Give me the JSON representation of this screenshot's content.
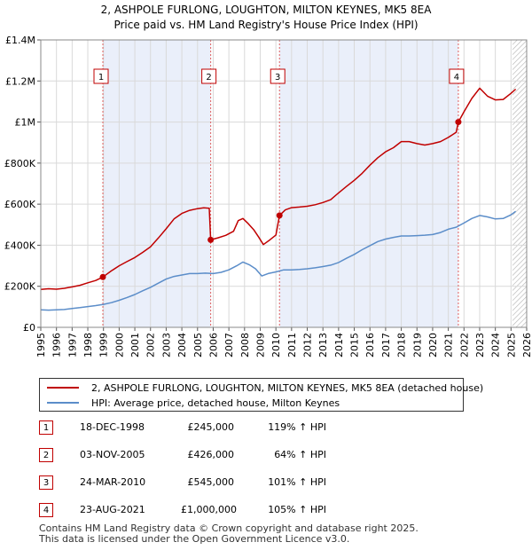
{
  "chart_data": {
    "type": "line",
    "title": "2, ASHPOLE FURLONG, LOUGHTON, MILTON KEYNES, MK5 8EA",
    "subtitle": "Price paid vs. HM Land Registry's House Price Index (HPI)",
    "xlim": [
      1995,
      2026
    ],
    "ylim": [
      0,
      1400000
    ],
    "x_ticks": [
      "1995",
      "1996",
      "1997",
      "1998",
      "1999",
      "2000",
      "2001",
      "2002",
      "2003",
      "2004",
      "2005",
      "2006",
      "2007",
      "2008",
      "2009",
      "2010",
      "2011",
      "2012",
      "2013",
      "2014",
      "2015",
      "2016",
      "2017",
      "2018",
      "2019",
      "2020",
      "2021",
      "2022",
      "2023",
      "2024",
      "2025",
      "2026"
    ],
    "y_ticks": [
      {
        "value": 0,
        "label": "£0"
      },
      {
        "value": 200000,
        "label": "£200K"
      },
      {
        "value": 400000,
        "label": "£400K"
      },
      {
        "value": 600000,
        "label": "£600K"
      },
      {
        "value": 800000,
        "label": "£800K"
      },
      {
        "value": 1000000,
        "label": "£1M"
      },
      {
        "value": 1200000,
        "label": "£1.2M"
      },
      {
        "value": 1400000,
        "label": "£1.4M"
      }
    ],
    "grid": true,
    "shaded_periods": [
      [
        1998.96,
        2005.84
      ],
      [
        2010.23,
        2021.64
      ]
    ],
    "forecast_start": 2025.1,
    "series": [
      {
        "name": "2, ASHPOLE FURLONG, LOUGHTON, MILTON KEYNES, MK5 8EA (detached house)",
        "color": "#c00000",
        "points": [
          [
            1995.0,
            185000
          ],
          [
            1995.5,
            188000
          ],
          [
            1996.0,
            186000
          ],
          [
            1996.5,
            190000
          ],
          [
            1997.0,
            197000
          ],
          [
            1997.5,
            205000
          ],
          [
            1998.0,
            217000
          ],
          [
            1998.5,
            228000
          ],
          [
            1998.96,
            245000
          ],
          [
            1999.5,
            275000
          ],
          [
            2000.0,
            300000
          ],
          [
            2000.5,
            320000
          ],
          [
            2001.0,
            340000
          ],
          [
            2001.5,
            365000
          ],
          [
            2002.0,
            392000
          ],
          [
            2002.5,
            435000
          ],
          [
            2003.0,
            480000
          ],
          [
            2003.5,
            528000
          ],
          [
            2004.0,
            555000
          ],
          [
            2004.5,
            570000
          ],
          [
            2005.0,
            578000
          ],
          [
            2005.4,
            582000
          ],
          [
            2005.75,
            580000
          ],
          [
            2005.84,
            426000
          ],
          [
            2006.3,
            436000
          ],
          [
            2006.8,
            448000
          ],
          [
            2007.3,
            468000
          ],
          [
            2007.6,
            520000
          ],
          [
            2007.9,
            530000
          ],
          [
            2008.2,
            508000
          ],
          [
            2008.6,
            474000
          ],
          [
            2008.9,
            440000
          ],
          [
            2009.2,
            403000
          ],
          [
            2009.6,
            425000
          ],
          [
            2010.0,
            450000
          ],
          [
            2010.23,
            545000
          ],
          [
            2010.6,
            572000
          ],
          [
            2011.0,
            583000
          ],
          [
            2011.5,
            586000
          ],
          [
            2012.0,
            590000
          ],
          [
            2012.5,
            597000
          ],
          [
            2013.0,
            608000
          ],
          [
            2013.5,
            622000
          ],
          [
            2014.0,
            655000
          ],
          [
            2014.5,
            686000
          ],
          [
            2015.0,
            716000
          ],
          [
            2015.5,
            750000
          ],
          [
            2016.0,
            790000
          ],
          [
            2016.5,
            826000
          ],
          [
            2017.0,
            855000
          ],
          [
            2017.5,
            875000
          ],
          [
            2018.0,
            905000
          ],
          [
            2018.5,
            905000
          ],
          [
            2019.0,
            895000
          ],
          [
            2019.5,
            888000
          ],
          [
            2020.0,
            895000
          ],
          [
            2020.5,
            905000
          ],
          [
            2021.0,
            925000
          ],
          [
            2021.5,
            950000
          ],
          [
            2021.64,
            1000000
          ],
          [
            2022.0,
            1050000
          ],
          [
            2022.5,
            1115000
          ],
          [
            2023.0,
            1165000
          ],
          [
            2023.5,
            1126000
          ],
          [
            2024.0,
            1108000
          ],
          [
            2024.5,
            1110000
          ],
          [
            2025.0,
            1140000
          ],
          [
            2025.3,
            1160000
          ]
        ]
      },
      {
        "name": "HPI: Average price, detached house, Milton Keynes",
        "color": "#5b8dc9",
        "points": [
          [
            1995.0,
            85000
          ],
          [
            1995.5,
            84000
          ],
          [
            1996.0,
            85000
          ],
          [
            1996.5,
            87000
          ],
          [
            1997.0,
            92000
          ],
          [
            1997.5,
            96000
          ],
          [
            1998.0,
            101000
          ],
          [
            1998.5,
            106000
          ],
          [
            1999.0,
            112000
          ],
          [
            1999.5,
            120000
          ],
          [
            2000.0,
            132000
          ],
          [
            2000.5,
            145000
          ],
          [
            2001.0,
            160000
          ],
          [
            2001.5,
            178000
          ],
          [
            2002.0,
            195000
          ],
          [
            2002.5,
            215000
          ],
          [
            2003.0,
            235000
          ],
          [
            2003.5,
            248000
          ],
          [
            2004.0,
            255000
          ],
          [
            2004.5,
            262000
          ],
          [
            2005.0,
            262000
          ],
          [
            2005.5,
            264000
          ],
          [
            2006.0,
            262000
          ],
          [
            2006.5,
            268000
          ],
          [
            2007.0,
            280000
          ],
          [
            2007.5,
            300000
          ],
          [
            2007.9,
            318000
          ],
          [
            2008.3,
            305000
          ],
          [
            2008.7,
            285000
          ],
          [
            2009.1,
            250000
          ],
          [
            2009.5,
            262000
          ],
          [
            2010.0,
            270000
          ],
          [
            2010.5,
            280000
          ],
          [
            2011.0,
            280000
          ],
          [
            2011.5,
            282000
          ],
          [
            2012.0,
            285000
          ],
          [
            2012.5,
            290000
          ],
          [
            2013.0,
            296000
          ],
          [
            2013.5,
            303000
          ],
          [
            2014.0,
            316000
          ],
          [
            2014.5,
            336000
          ],
          [
            2015.0,
            355000
          ],
          [
            2015.5,
            378000
          ],
          [
            2016.0,
            398000
          ],
          [
            2016.5,
            418000
          ],
          [
            2017.0,
            430000
          ],
          [
            2017.5,
            438000
          ],
          [
            2018.0,
            445000
          ],
          [
            2018.5,
            445000
          ],
          [
            2019.0,
            447000
          ],
          [
            2019.5,
            449000
          ],
          [
            2020.0,
            452000
          ],
          [
            2020.5,
            462000
          ],
          [
            2021.0,
            478000
          ],
          [
            2021.5,
            488000
          ],
          [
            2022.0,
            508000
          ],
          [
            2022.5,
            530000
          ],
          [
            2023.0,
            545000
          ],
          [
            2023.5,
            538000
          ],
          [
            2024.0,
            528000
          ],
          [
            2024.5,
            530000
          ],
          [
            2025.0,
            548000
          ],
          [
            2025.3,
            565000
          ]
        ]
      }
    ],
    "markers": [
      {
        "id": "1",
        "year": 1998.96,
        "value": 245000
      },
      {
        "id": "2",
        "year": 2005.84,
        "value": 426000
      },
      {
        "id": "3",
        "year": 2010.23,
        "value": 545000
      },
      {
        "id": "4",
        "year": 2021.64,
        "value": 1000000
      }
    ]
  },
  "legend": {
    "property_label": "2, ASHPOLE FURLONG, LOUGHTON, MILTON KEYNES, MK5 8EA (detached house)",
    "hpi_label": "HPI: Average price, detached house, Milton Keynes"
  },
  "sales": [
    {
      "id": "1",
      "date": "18-DEC-1998",
      "price": "£245,000",
      "hpi": "119% ↑ HPI"
    },
    {
      "id": "2",
      "date": "03-NOV-2005",
      "price": "£426,000",
      "hpi": "64% ↑ HPI"
    },
    {
      "id": "3",
      "date": "24-MAR-2010",
      "price": "£545,000",
      "hpi": "101% ↑ HPI"
    },
    {
      "id": "4",
      "date": "23-AUG-2021",
      "price": "£1,000,000",
      "hpi": "105% ↑ HPI"
    }
  ],
  "footer": {
    "line1": "Contains HM Land Registry data © Crown copyright and database right 2025.",
    "line2": "This data is licensed under the Open Government Licence v3.0."
  }
}
